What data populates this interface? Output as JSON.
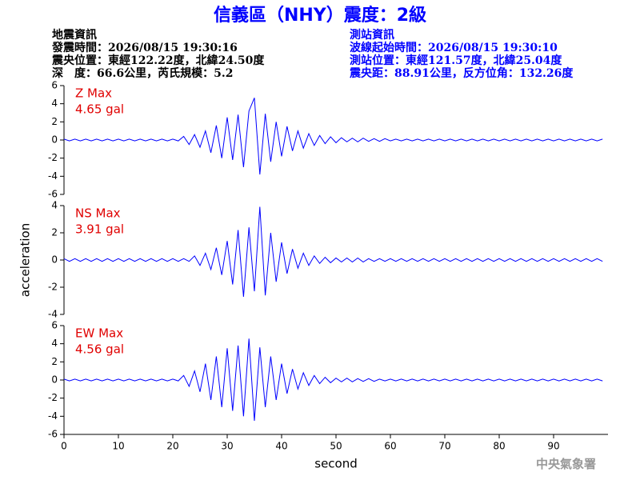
{
  "header": {
    "title": "信義區（NHY）震度：2級",
    "left_info": [
      "地震資訊",
      "發震時間：2026/08/15 19:30:16",
      "震央位置：東經122.22度，北緯24.50度",
      "深　度：66.6公里，芮氏規模：5.2"
    ],
    "right_info": [
      "測站資訊",
      "波線起始時間：2026/08/15 19:30:10",
      "測站位置：東經121.57度，北緯25.04度",
      "震央距：88.91公里，反方位角：132.26度"
    ],
    "footer": "中央氣象署"
  },
  "chart_data": [
    {
      "type": "line",
      "annotations": [
        "Z Max",
        "4.65 gal"
      ],
      "color": "#0000ff",
      "annotation_color": "#e00000",
      "ylim": [
        -6,
        6
      ],
      "yticks": [
        -6,
        -4,
        -2,
        0,
        2,
        4,
        6
      ],
      "xlim": [
        0,
        100
      ],
      "x": [
        0,
        1,
        2,
        3,
        4,
        5,
        6,
        7,
        8,
        9,
        10,
        11,
        12,
        13,
        14,
        15,
        16,
        17,
        18,
        19,
        20,
        21,
        22,
        23,
        24,
        25,
        26,
        27,
        28,
        29,
        30,
        31,
        32,
        33,
        34,
        35,
        36,
        37,
        38,
        39,
        40,
        41,
        42,
        43,
        44,
        45,
        46,
        47,
        48,
        49,
        50,
        51,
        52,
        53,
        54,
        55,
        56,
        57,
        58,
        59,
        60,
        61,
        62,
        63,
        64,
        65,
        66,
        67,
        68,
        69,
        70,
        71,
        72,
        73,
        74,
        75,
        76,
        77,
        78,
        79,
        80,
        81,
        82,
        83,
        84,
        85,
        86,
        87,
        88,
        89,
        90,
        91,
        92,
        93,
        94,
        95,
        96,
        97,
        98,
        99
      ],
      "values": [
        0.1,
        -0.1,
        0.1,
        -0.1,
        0.1,
        -0.1,
        0.1,
        -0.1,
        0.1,
        -0.1,
        0.1,
        -0.1,
        0.1,
        -0.1,
        0.1,
        -0.1,
        0.1,
        -0.1,
        0.1,
        -0.1,
        0.1,
        -0.1,
        0.4,
        -0.5,
        0.6,
        -0.8,
        1.0,
        -1.4,
        1.6,
        -2.0,
        2.5,
        -2.2,
        2.8,
        -3.0,
        3.2,
        4.65,
        -3.8,
        2.9,
        -2.4,
        2.0,
        -1.8,
        1.5,
        -1.2,
        1.0,
        -0.9,
        0.7,
        -0.6,
        0.5,
        -0.4,
        0.35,
        -0.3,
        0.25,
        -0.2,
        0.2,
        -0.2,
        0.2,
        -0.15,
        0.15,
        -0.15,
        0.15,
        -0.1,
        0.1,
        -0.1,
        0.1,
        -0.1,
        0.1,
        -0.1,
        0.1,
        -0.1,
        0.1,
        -0.1,
        0.1,
        -0.1,
        0.1,
        -0.1,
        0.1,
        -0.1,
        0.1,
        -0.1,
        0.1,
        -0.1,
        0.1,
        -0.1,
        0.1,
        -0.1,
        0.1,
        -0.1,
        0.1,
        -0.1,
        0.1,
        -0.1,
        0.1,
        -0.1,
        0.1,
        -0.1,
        0.1,
        -0.1,
        0.1,
        -0.1,
        0.1
      ]
    },
    {
      "type": "line",
      "annotations": [
        "NS Max",
        "3.91 gal"
      ],
      "color": "#0000ff",
      "annotation_color": "#e00000",
      "ylabel": "acceleration",
      "ylim": [
        -4,
        4
      ],
      "yticks": [
        -4,
        -2,
        0,
        2,
        4
      ],
      "xlim": [
        0,
        100
      ],
      "x": [
        0,
        1,
        2,
        3,
        4,
        5,
        6,
        7,
        8,
        9,
        10,
        11,
        12,
        13,
        14,
        15,
        16,
        17,
        18,
        19,
        20,
        21,
        22,
        23,
        24,
        25,
        26,
        27,
        28,
        29,
        30,
        31,
        32,
        33,
        34,
        35,
        36,
        37,
        38,
        39,
        40,
        41,
        42,
        43,
        44,
        45,
        46,
        47,
        48,
        49,
        50,
        51,
        52,
        53,
        54,
        55,
        56,
        57,
        58,
        59,
        60,
        61,
        62,
        63,
        64,
        65,
        66,
        67,
        68,
        69,
        70,
        71,
        72,
        73,
        74,
        75,
        76,
        77,
        78,
        79,
        80,
        81,
        82,
        83,
        84,
        85,
        86,
        87,
        88,
        89,
        90,
        91,
        92,
        93,
        94,
        95,
        96,
        97,
        98,
        99
      ],
      "values": [
        0.1,
        -0.1,
        0.1,
        -0.1,
        0.1,
        -0.1,
        0.1,
        -0.1,
        0.1,
        -0.1,
        0.1,
        -0.1,
        0.1,
        -0.1,
        0.1,
        -0.1,
        0.1,
        -0.1,
        0.1,
        -0.1,
        0.1,
        -0.1,
        0.1,
        -0.1,
        0.3,
        -0.4,
        0.5,
        -0.7,
        0.9,
        -1.1,
        1.4,
        -1.8,
        2.2,
        -2.7,
        2.4,
        -2.3,
        3.91,
        -2.6,
        2.0,
        -1.6,
        1.3,
        -1.0,
        0.8,
        -0.6,
        0.5,
        -0.4,
        0.3,
        -0.25,
        0.2,
        -0.2,
        0.15,
        -0.15,
        0.15,
        -0.15,
        0.15,
        -0.15,
        0.1,
        -0.1,
        0.1,
        -0.1,
        0.1,
        -0.1,
        0.1,
        -0.1,
        0.1,
        -0.1,
        0.1,
        -0.1,
        0.1,
        -0.1,
        0.1,
        -0.1,
        0.1,
        -0.1,
        0.1,
        -0.1,
        0.1,
        -0.1,
        0.1,
        -0.1,
        0.1,
        -0.1,
        0.1,
        -0.1,
        0.1,
        -0.1,
        0.1,
        -0.1,
        0.1,
        -0.1,
        0.1,
        -0.1,
        0.1,
        -0.1,
        0.1,
        -0.1,
        0.1,
        -0.1,
        0.1,
        -0.1
      ]
    },
    {
      "type": "line",
      "annotations": [
        "EW Max",
        "4.56 gal"
      ],
      "color": "#0000ff",
      "annotation_color": "#e00000",
      "xlabel": "second",
      "ylim": [
        -6,
        6
      ],
      "yticks": [
        -6,
        -4,
        -2,
        0,
        2,
        4,
        6
      ],
      "xlim": [
        0,
        100
      ],
      "xticks": [
        0,
        10,
        20,
        30,
        40,
        50,
        60,
        70,
        80,
        90
      ],
      "x": [
        0,
        1,
        2,
        3,
        4,
        5,
        6,
        7,
        8,
        9,
        10,
        11,
        12,
        13,
        14,
        15,
        16,
        17,
        18,
        19,
        20,
        21,
        22,
        23,
        24,
        25,
        26,
        27,
        28,
        29,
        30,
        31,
        32,
        33,
        34,
        35,
        36,
        37,
        38,
        39,
        40,
        41,
        42,
        43,
        44,
        45,
        46,
        47,
        48,
        49,
        50,
        51,
        52,
        53,
        54,
        55,
        56,
        57,
        58,
        59,
        60,
        61,
        62,
        63,
        64,
        65,
        66,
        67,
        68,
        69,
        70,
        71,
        72,
        73,
        74,
        75,
        76,
        77,
        78,
        79,
        80,
        81,
        82,
        83,
        84,
        85,
        86,
        87,
        88,
        89,
        90,
        91,
        92,
        93,
        94,
        95,
        96,
        97,
        98,
        99
      ],
      "values": [
        0.1,
        -0.1,
        0.1,
        -0.1,
        0.1,
        -0.1,
        0.1,
        -0.1,
        0.1,
        -0.1,
        0.1,
        -0.1,
        0.1,
        -0.1,
        0.1,
        -0.1,
        0.1,
        -0.1,
        0.1,
        -0.1,
        0.1,
        -0.1,
        0.5,
        -0.7,
        1.0,
        -1.3,
        1.8,
        -2.2,
        2.6,
        -3.0,
        3.5,
        -3.4,
        3.8,
        -4.0,
        4.56,
        -4.5,
        3.6,
        -3.0,
        2.6,
        -2.2,
        1.8,
        -1.5,
        1.2,
        -1.0,
        0.8,
        -0.6,
        0.5,
        -0.4,
        0.3,
        -0.3,
        0.2,
        -0.2,
        0.2,
        -0.2,
        0.15,
        -0.15,
        0.15,
        -0.15,
        0.1,
        -0.1,
        0.1,
        -0.1,
        0.1,
        -0.1,
        0.1,
        -0.1,
        0.1,
        -0.1,
        0.1,
        -0.1,
        0.1,
        -0.1,
        0.1,
        -0.1,
        0.1,
        -0.1,
        0.1,
        -0.1,
        0.1,
        -0.1,
        0.1,
        -0.1,
        0.1,
        -0.1,
        0.1,
        -0.1,
        0.1,
        -0.1,
        0.1,
        -0.1,
        0.1,
        -0.1,
        0.1,
        -0.1,
        0.1,
        -0.1,
        0.1,
        -0.1,
        0.1,
        -0.1
      ]
    }
  ]
}
